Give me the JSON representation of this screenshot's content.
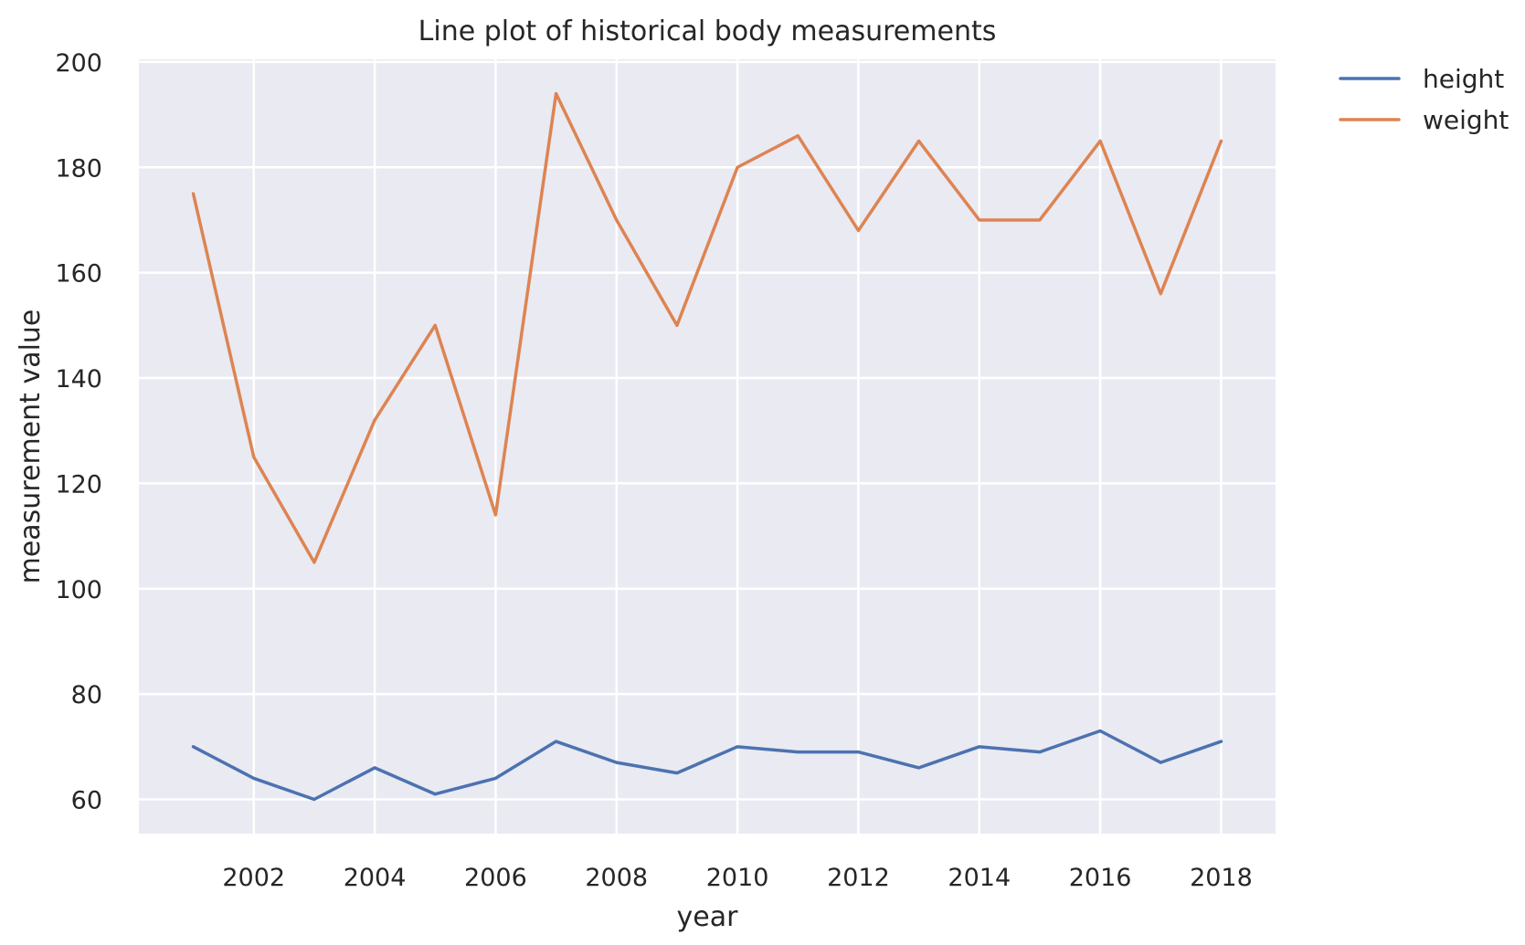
{
  "chart_data": {
    "type": "line",
    "title": "Line plot of historical body measurements",
    "xlabel": "year",
    "ylabel": "measurement value",
    "x": [
      2001,
      2002,
      2003,
      2004,
      2005,
      2006,
      2007,
      2008,
      2009,
      2010,
      2011,
      2012,
      2013,
      2014,
      2015,
      2016,
      2017,
      2018
    ],
    "series": [
      {
        "name": "height",
        "color": "#4c72b0",
        "values": [
          70,
          64,
          60,
          66,
          61,
          64,
          71,
          67,
          65,
          70,
          69,
          69,
          66,
          70,
          69,
          73,
          67,
          71
        ]
      },
      {
        "name": "weight",
        "color": "#dd8452",
        "values": [
          175,
          125,
          105,
          132,
          150,
          114,
          194,
          170,
          150,
          180,
          186,
          168,
          185,
          170,
          170,
          185,
          156,
          185
        ]
      }
    ],
    "xlim": [
      2000.1,
      2018.9
    ],
    "ylim": [
      53.5,
      200.5
    ],
    "x_ticks": [
      2002,
      2004,
      2006,
      2008,
      2010,
      2012,
      2014,
      2016,
      2018
    ],
    "y_ticks": [
      60,
      80,
      100,
      120,
      140,
      160,
      180,
      200
    ],
    "grid": true,
    "legend_position": "outside-top-right",
    "background_color": "#eaeaf2"
  }
}
